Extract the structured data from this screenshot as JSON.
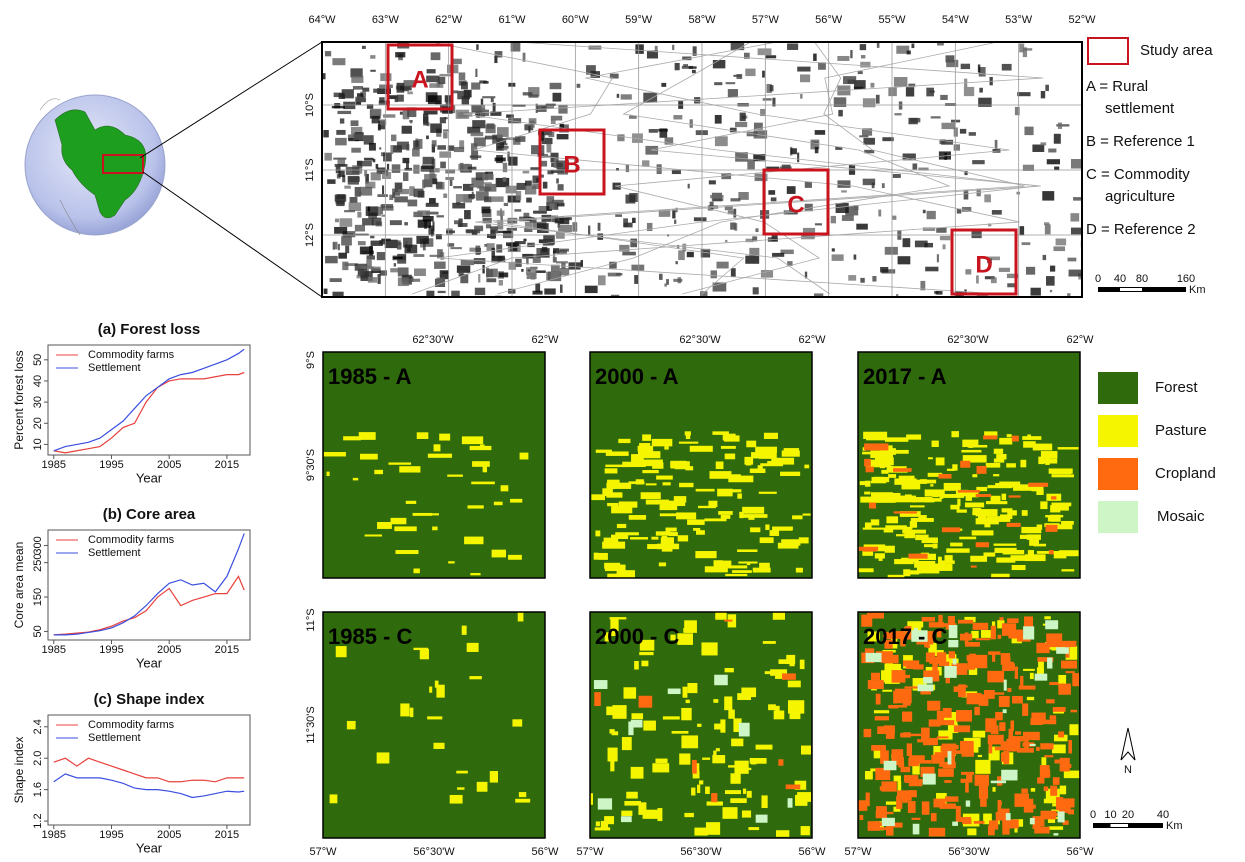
{
  "chart_data": [
    {
      "type": "line",
      "title": "(a) Forest loss",
      "xlabel": "Year",
      "ylabel": "Percent forest loss",
      "x": [
        1985,
        1987,
        1989,
        1991,
        1993,
        1995,
        1997,
        1999,
        2001,
        2003,
        2005,
        2007,
        2009,
        2011,
        2013,
        2015,
        2017,
        2018
      ],
      "series": [
        {
          "name": "Commodity farms",
          "color": "#e8413c",
          "values": [
            7,
            6,
            7,
            8,
            9,
            13,
            18,
            20,
            30,
            37,
            40,
            41,
            41,
            41,
            42,
            43,
            43,
            44
          ]
        },
        {
          "name": "Settlement",
          "color": "#3a4fe0",
          "values": [
            7,
            9,
            10,
            11,
            13,
            17,
            21,
            27,
            33,
            37,
            41,
            43,
            44,
            46,
            48,
            50,
            53,
            55
          ]
        }
      ],
      "xlim": [
        1984,
        2019
      ],
      "ylim": [
        5,
        57
      ],
      "xticks": [
        1985,
        1995,
        2005,
        2015
      ],
      "yticks": [
        10,
        20,
        30,
        40,
        50
      ]
    },
    {
      "type": "line",
      "title": "(b) Core area",
      "xlabel": "Year",
      "ylabel": "Core area mean",
      "x": [
        1985,
        1987,
        1989,
        1991,
        1993,
        1995,
        1997,
        1999,
        2001,
        2003,
        2005,
        2007,
        2009,
        2011,
        2013,
        2015,
        2017,
        2018
      ],
      "series": [
        {
          "name": "Commodity farms",
          "color": "#e8413c",
          "values": [
            40,
            42,
            45,
            48,
            55,
            65,
            80,
            90,
            110,
            150,
            175,
            125,
            140,
            150,
            160,
            160,
            210,
            170
          ]
        },
        {
          "name": "Settlement",
          "color": "#3a4fe0",
          "values": [
            40,
            40,
            42,
            47,
            52,
            60,
            75,
            95,
            125,
            160,
            190,
            200,
            185,
            190,
            165,
            210,
            290,
            335
          ]
        }
      ],
      "xlim": [
        1984,
        2019
      ],
      "ylim": [
        25,
        345
      ],
      "xticks": [
        1985,
        1995,
        2005,
        2015
      ],
      "yticks": [
        50,
        150,
        250,
        300
      ]
    },
    {
      "type": "line",
      "title": "(c) Shape index",
      "xlabel": "Year",
      "ylabel": "Shape index",
      "x": [
        1985,
        1987,
        1989,
        1991,
        1993,
        1995,
        1997,
        1999,
        2001,
        2003,
        2005,
        2007,
        2009,
        2011,
        2013,
        2015,
        2017,
        2018
      ],
      "series": [
        {
          "name": "Commodity farms",
          "color": "#e8413c",
          "values": [
            1.95,
            2.0,
            1.9,
            2.0,
            1.95,
            1.9,
            1.85,
            1.8,
            1.75,
            1.75,
            1.7,
            1.7,
            1.72,
            1.72,
            1.7,
            1.75,
            1.75,
            1.75
          ]
        },
        {
          "name": "Settlement",
          "color": "#3a4fe0",
          "values": [
            1.7,
            1.8,
            1.75,
            1.75,
            1.75,
            1.72,
            1.68,
            1.62,
            1.6,
            1.6,
            1.58,
            1.55,
            1.5,
            1.52,
            1.55,
            1.58,
            1.57,
            1.58
          ]
        }
      ],
      "xlim": [
        1984,
        2019
      ],
      "ylim": [
        1.15,
        2.55
      ],
      "xticks": [
        1985,
        1995,
        2005,
        2015
      ],
      "yticks": [
        1.2,
        1.6,
        {
          "value": 2,
          "label": "2.0"
        },
        2.4
      ]
    }
  ],
  "overview": {
    "lon_labels": [
      "64°W",
      "63°W",
      "62°W",
      "61°W",
      "60°W",
      "59°W",
      "58°W",
      "57°W",
      "56°W",
      "55°W",
      "54°W",
      "53°W",
      "52°W"
    ],
    "lat_labels": [
      "10°S",
      "11°S",
      "12°S"
    ],
    "areas": [
      "A",
      "B",
      "C",
      "D"
    ],
    "legend_title": "Study area",
    "legend_items": [
      [
        "A = Rural",
        "settlement"
      ],
      [
        "B = Reference 1"
      ],
      [
        "C = Commodity",
        "agriculture"
      ],
      [
        "D = Reference 2"
      ]
    ],
    "scale": {
      "ticks": [
        "0",
        "40",
        "80",
        "160"
      ],
      "unit": "Km"
    }
  },
  "panels": {
    "labels": [
      "1985 - A",
      "2000 - A",
      "2017 - A",
      "1985 - C",
      "2000 - C",
      "2017 - C"
    ],
    "top_lon": [
      "62°30'W",
      "62°W"
    ],
    "bottom_lon": [
      "57°W",
      "56°30'W",
      "56°W"
    ],
    "lat_a": [
      "9°S",
      "9°30'S"
    ],
    "lat_c": [
      "11°S",
      "11°30'S"
    ]
  },
  "legend": [
    {
      "label": "Forest",
      "color": "#2f6b0d"
    },
    {
      "label": "Pasture",
      "color": "#f5f500"
    },
    {
      "label": "Cropland",
      "color": "#ff6a10"
    },
    {
      "label": "Mosaic",
      "color": "#cdf5c6"
    }
  ],
  "north": "N",
  "scale2": {
    "ticks": [
      "0",
      "10",
      "20",
      "40"
    ],
    "unit": "Km"
  }
}
